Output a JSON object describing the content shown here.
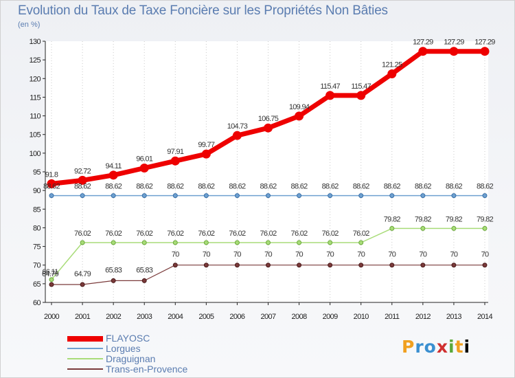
{
  "header": {
    "title": "Evolution du Taux de Taxe Foncière sur les Propriétés Non Bâties",
    "unit": "(en %)"
  },
  "brand": {
    "text": "Proxiti"
  },
  "chart_data": {
    "type": "line",
    "title": "Evolution du Taux de Taxe Foncière sur les Propriétés Non Bâties",
    "ylabel": "(en %)",
    "xlabel": "",
    "x": [
      "2000",
      "2001",
      "2002",
      "2003",
      "2004",
      "2005",
      "2006",
      "2007",
      "2008",
      "2009",
      "2010",
      "2011",
      "2012",
      "2013",
      "2014"
    ],
    "ylim": [
      60,
      130
    ],
    "yticks": [
      60,
      65,
      70,
      75,
      80,
      85,
      90,
      95,
      100,
      105,
      110,
      115,
      120,
      125,
      130
    ],
    "grid": "vertical dotted",
    "legend_position": "bottom-left",
    "series": [
      {
        "name": "FLAYOSC",
        "color": "#ee0000",
        "values": [
          91.8,
          92.72,
          94.11,
          96.01,
          97.91,
          99.77,
          104.73,
          106.75,
          109.94,
          115.47,
          115.47,
          121.25,
          127.29,
          127.29,
          127.29
        ],
        "labels": [
          "91.8",
          "92.72",
          "94.11",
          "96.01",
          "97.91",
          "99.77",
          "104.73",
          "106.75",
          "109.94",
          "115.47",
          "115.47",
          "121.25",
          "127.29",
          "127.29",
          "127.29"
        ]
      },
      {
        "name": "Lorgues",
        "color": "#6ea0d0",
        "values": [
          88.62,
          88.62,
          88.62,
          88.62,
          88.62,
          88.62,
          88.62,
          88.62,
          88.62,
          88.62,
          88.62,
          88.62,
          88.62,
          88.62,
          88.62
        ],
        "labels": [
          "88.62",
          "88.62",
          "88.62",
          "88.62",
          "88.62",
          "88.62",
          "88.62",
          "88.62",
          "88.62",
          "88.62",
          "88.62",
          "88.62",
          "88.62",
          "88.62",
          "88.62"
        ]
      },
      {
        "name": "Draguignan",
        "color": "#a8dc78",
        "values": [
          66.11,
          76.02,
          76.02,
          76.02,
          76.02,
          76.02,
          76.02,
          76.02,
          76.02,
          76.02,
          76.02,
          79.82,
          79.82,
          79.82,
          79.82
        ],
        "labels": [
          "66.11",
          "76.02",
          "76.02",
          "76.02",
          "76.02",
          "76.02",
          "76.02",
          "76.02",
          "76.02",
          "76.02",
          "76.02",
          "79.82",
          "79.82",
          "79.82",
          "79.82"
        ]
      },
      {
        "name": "Trans-en-Provence",
        "color": "#7a3a3a",
        "values": [
          64.79,
          64.79,
          65.83,
          65.83,
          70,
          70,
          70,
          70,
          70,
          70,
          70,
          70,
          70,
          70,
          70
        ],
        "labels": [
          "64.79",
          "64.79",
          "65.83",
          "65.83",
          "70",
          "70",
          "70",
          "70",
          "70",
          "70",
          "70",
          "70",
          "70",
          "70",
          "70"
        ]
      }
    ]
  }
}
